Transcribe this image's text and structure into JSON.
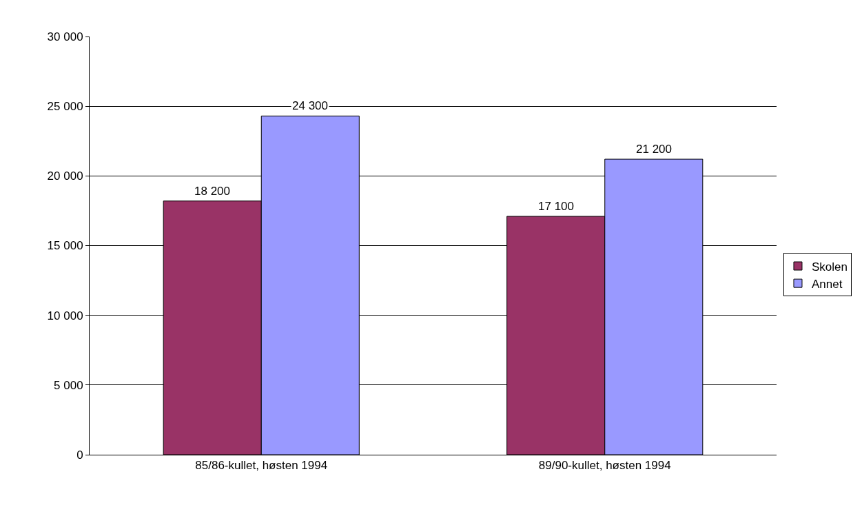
{
  "chart_data": {
    "type": "bar",
    "categories": [
      "85/86-kullet, høsten 1994",
      "89/90-kullet, høsten 1994"
    ],
    "series": [
      {
        "name": "Skolen",
        "color": "#993366",
        "values": [
          18200,
          17100
        ],
        "value_labels": [
          "18 200",
          "17 100"
        ]
      },
      {
        "name": "Annet",
        "color": "#9999ff",
        "values": [
          24300,
          21200
        ],
        "value_labels": [
          "24 300",
          "21 200"
        ]
      }
    ],
    "ylim": [
      0,
      30000
    ],
    "yticks": [
      {
        "value": 0,
        "label": "0"
      },
      {
        "value": 5000,
        "label": "5 000"
      },
      {
        "value": 10000,
        "label": "10 000"
      },
      {
        "value": 15000,
        "label": "15 000"
      },
      {
        "value": 20000,
        "label": "20 000"
      },
      {
        "value": 25000,
        "label": "25 000"
      },
      {
        "value": 30000,
        "label": "30 000"
      }
    ],
    "grid": "y",
    "legend": "right"
  }
}
